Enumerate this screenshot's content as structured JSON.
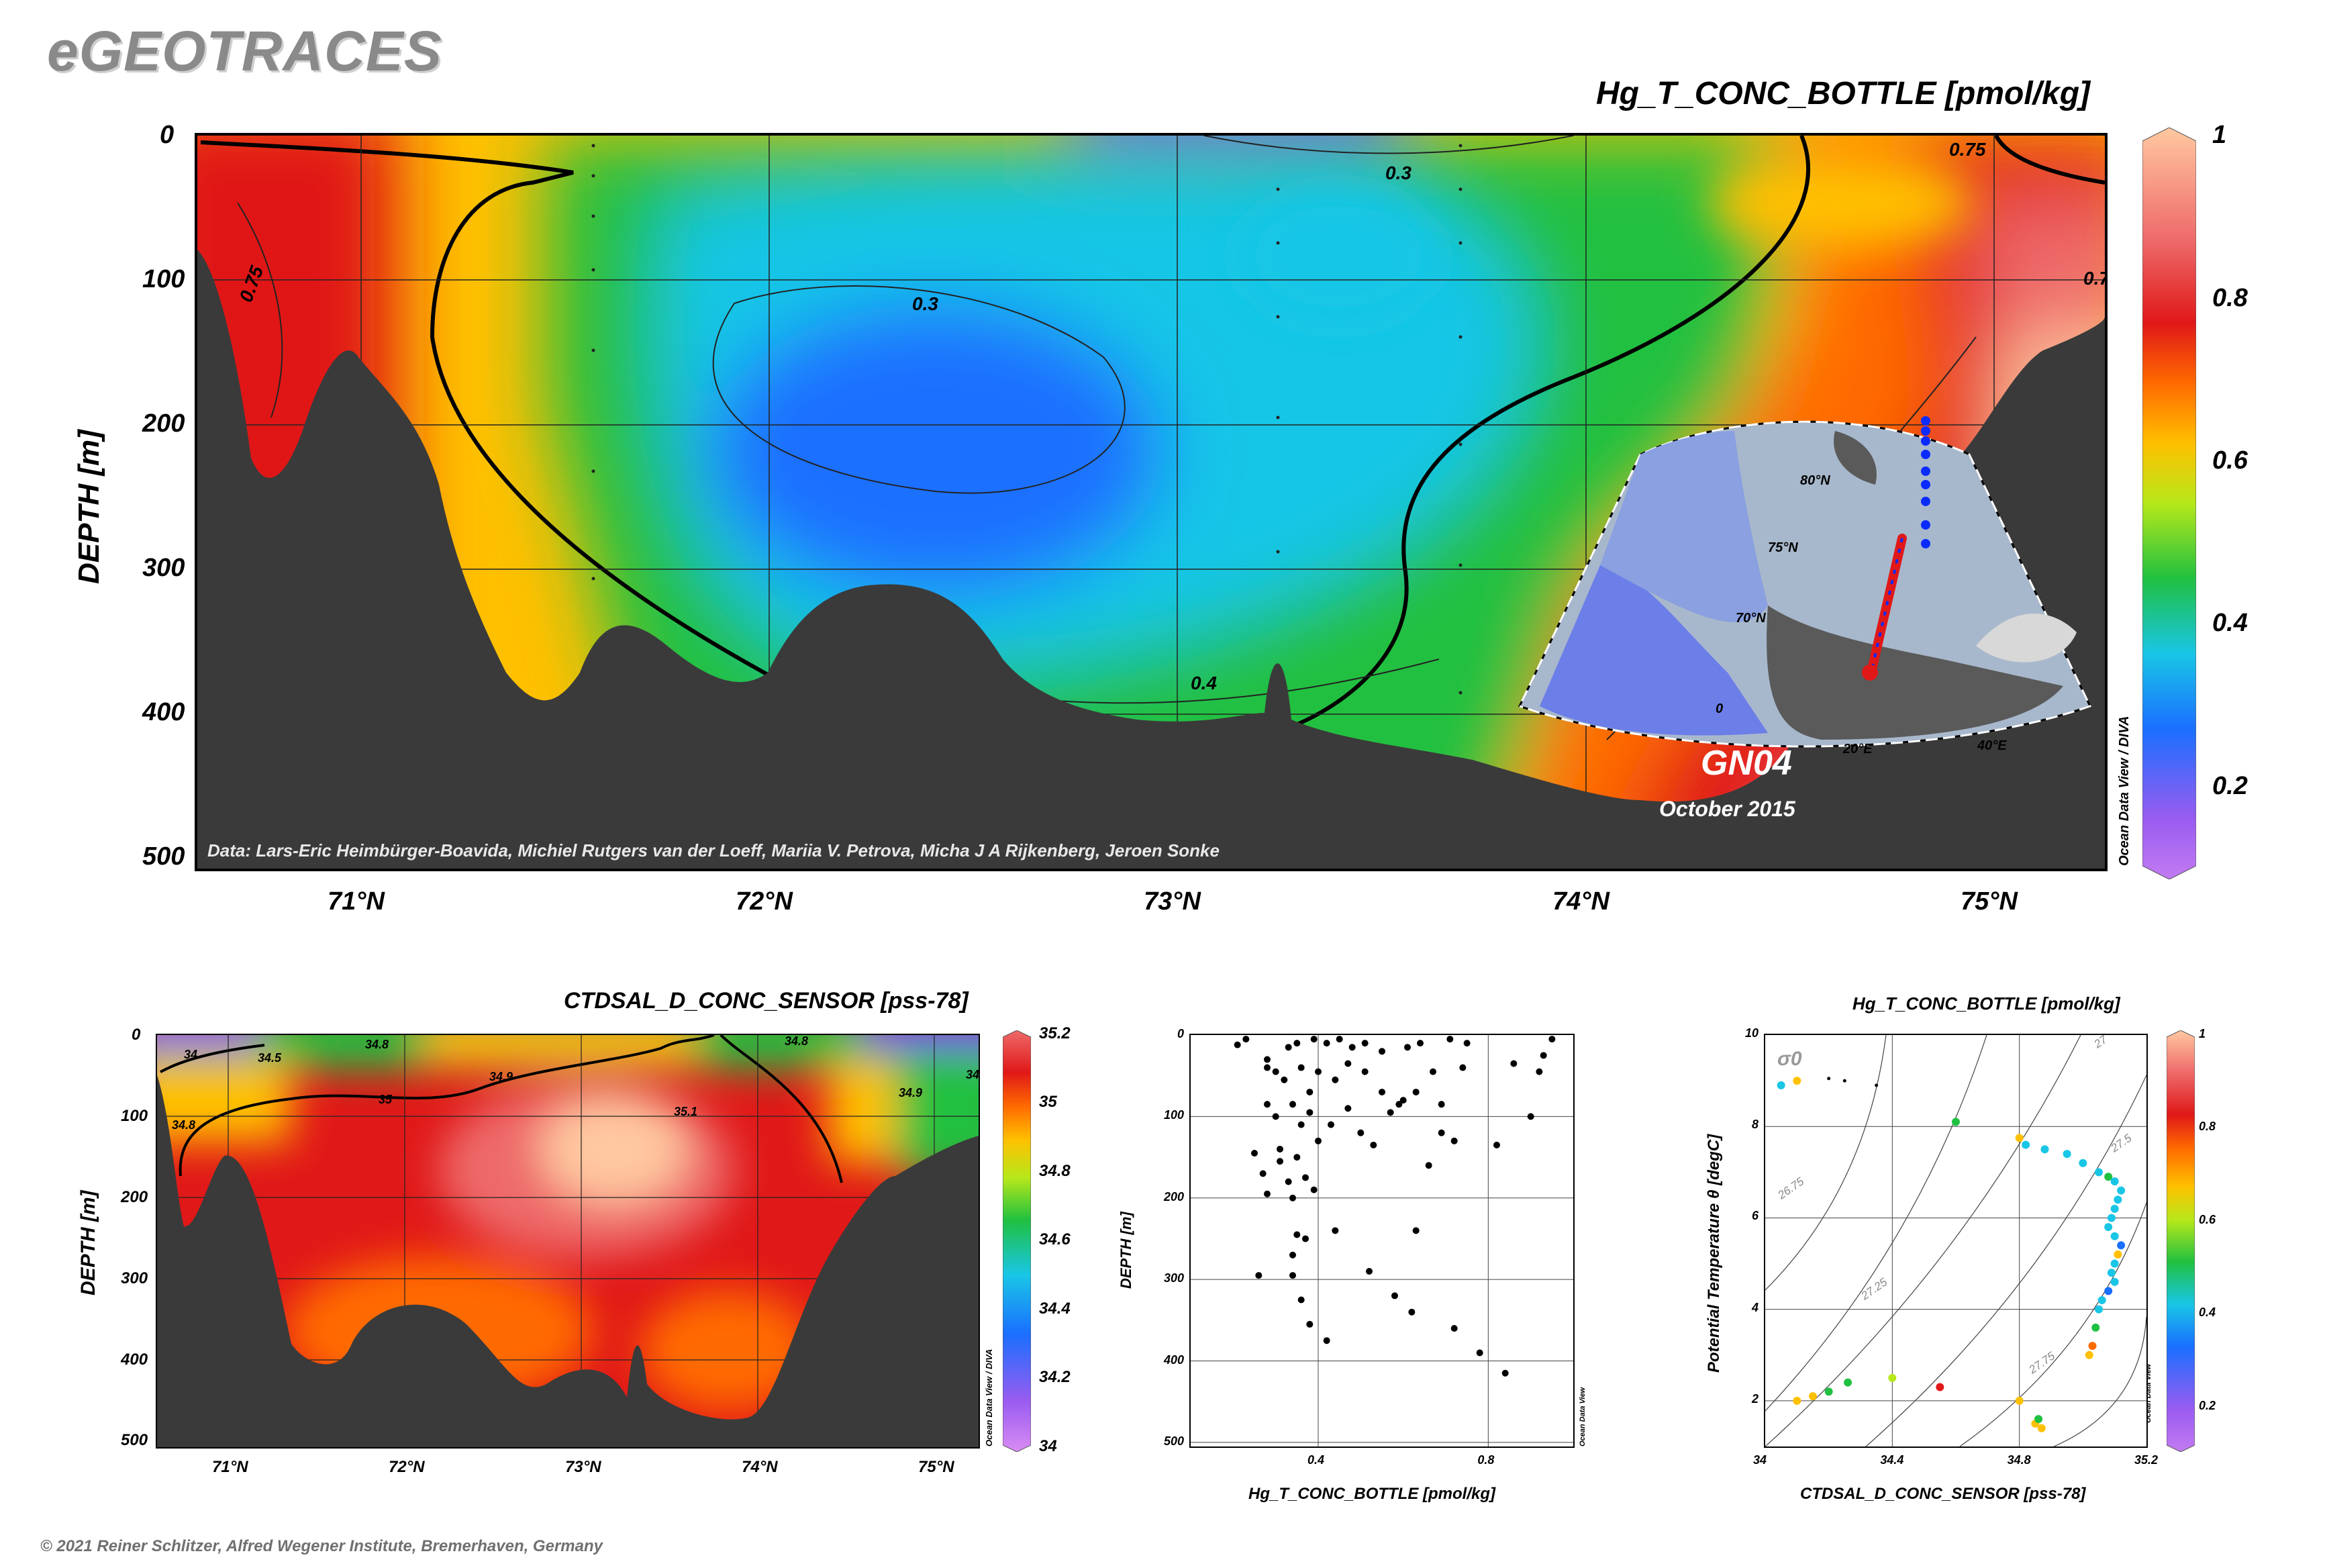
{
  "header": {
    "brand": "eGEOTRACES",
    "footer": "© 2021 Reiner Schlitzer, Alfred Wegener Institute, Bremerhaven, Germany"
  },
  "colors": {
    "bathymetry": "#3a3a3a",
    "scale": [
      "#c27bf2",
      "#7a3cf0",
      "#1a6fff",
      "#19c6e6",
      "#20c040",
      "#b6e81a",
      "#ffc000",
      "#ff6a00",
      "#e01818",
      "#ee6a6a",
      "#ffc8a0"
    ]
  },
  "main_section": {
    "title": "Hg_T_CONC_BOTTLE [pmol/kg]",
    "ylabel": "DEPTH [m]",
    "yticks": [
      "0",
      "100",
      "200",
      "300",
      "400",
      "500"
    ],
    "xticks": [
      "71°N",
      "72°N",
      "73°N",
      "74°N",
      "75°N"
    ],
    "colorbar_ticks": [
      "1",
      "0.8",
      "0.6",
      "0.4",
      "0.2"
    ],
    "contour_labels": [
      "0.75",
      "0.3",
      "0.3",
      "0.4",
      "0.75",
      "0.7"
    ],
    "credit": "Data: Lars-Eric Heimbürger-Boavida, Michiel Rutgers van der Loeff, Mariia V. Petrova, Micha J A Rijkenberg, Jeroen Sonke",
    "cruise": "GN04",
    "date": "October 2015",
    "odv_label": "Ocean Data View / DIVA",
    "map_labels": [
      "80°N",
      "75°N",
      "70°N",
      "0",
      "20°E",
      "40°E"
    ]
  },
  "salinity_section": {
    "title": "CTDSAL_D_CONC_SENSOR [pss-78]",
    "ylabel": "DEPTH [m]",
    "yticks": [
      "0",
      "100",
      "200",
      "300",
      "400",
      "500"
    ],
    "xticks": [
      "71°N",
      "72°N",
      "73°N",
      "74°N",
      "75°N"
    ],
    "colorbar_ticks": [
      "35.2",
      "35",
      "34.8",
      "34.6",
      "34.4",
      "34.2",
      "34"
    ],
    "contour_labels": [
      "34",
      "34.5",
      "34.8",
      "34.9",
      "35",
      "35.1",
      "34.8",
      "34.9",
      "34.8",
      "34"
    ],
    "odv_label": "Ocean Data View / DIVA"
  },
  "chart_data": [
    {
      "type": "heatmap",
      "title": "Hg_T_CONC_BOTTLE [pmol/kg]",
      "ylabel": "DEPTH [m]",
      "xlim": [
        70.6,
        75.3
      ],
      "ylim": [
        500,
        0
      ],
      "colorbar_range": [
        0.1,
        1
      ],
      "contour_levels": [
        0.3,
        0.4,
        0.5,
        0.7,
        0.75
      ],
      "grid": true
    },
    {
      "type": "scatter",
      "xlabel": "Hg_T_CONC_BOTTLE [pmol/kg]",
      "ylabel": "DEPTH [m]",
      "xlim": [
        0.1,
        1.0
      ],
      "ylim": [
        505,
        0
      ],
      "xticks": [
        "0.4",
        "0.8"
      ],
      "yticks": [
        "0",
        "100",
        "200",
        "300",
        "400",
        "500"
      ],
      "odv_label": "Ocean Data View",
      "points": [
        [
          0.21,
          12
        ],
        [
          0.23,
          5
        ],
        [
          0.28,
          30
        ],
        [
          0.28,
          40
        ],
        [
          0.33,
          15
        ],
        [
          0.35,
          10
        ],
        [
          0.39,
          5
        ],
        [
          0.42,
          10
        ],
        [
          0.45,
          5
        ],
        [
          0.48,
          15
        ],
        [
          0.51,
          10
        ],
        [
          0.55,
          20
        ],
        [
          0.61,
          15
        ],
        [
          0.64,
          10
        ],
        [
          0.71,
          5
        ],
        [
          0.75,
          10
        ],
        [
          0.92,
          45
        ],
        [
          0.93,
          25
        ],
        [
          0.95,
          5
        ],
        [
          0.3,
          45
        ],
        [
          0.32,
          55
        ],
        [
          0.36,
          40
        ],
        [
          0.38,
          70
        ],
        [
          0.4,
          45
        ],
        [
          0.44,
          55
        ],
        [
          0.47,
          35
        ],
        [
          0.51,
          45
        ],
        [
          0.55,
          70
        ],
        [
          0.59,
          85
        ],
        [
          0.63,
          70
        ],
        [
          0.67,
          45
        ],
        [
          0.69,
          85
        ],
        [
          0.74,
          40
        ],
        [
          0.86,
          35
        ],
        [
          0.9,
          100
        ],
        [
          0.28,
          85
        ],
        [
          0.3,
          100
        ],
        [
          0.34,
          85
        ],
        [
          0.36,
          110
        ],
        [
          0.38,
          95
        ],
        [
          0.4,
          130
        ],
        [
          0.43,
          110
        ],
        [
          0.47,
          90
        ],
        [
          0.5,
          120
        ],
        [
          0.53,
          135
        ],
        [
          0.57,
          95
        ],
        [
          0.6,
          80
        ],
        [
          0.66,
          160
        ],
        [
          0.69,
          120
        ],
        [
          0.72,
          130
        ],
        [
          0.82,
          135
        ],
        [
          0.25,
          145
        ],
        [
          0.27,
          170
        ],
        [
          0.31,
          155
        ],
        [
          0.33,
          180
        ],
        [
          0.35,
          150
        ],
        [
          0.37,
          175
        ],
        [
          0.39,
          190
        ],
        [
          0.28,
          195
        ],
        [
          0.34,
          200
        ],
        [
          0.31,
          140
        ],
        [
          0.35,
          245
        ],
        [
          0.34,
          270
        ],
        [
          0.37,
          250
        ],
        [
          0.44,
          240
        ],
        [
          0.63,
          240
        ],
        [
          0.26,
          295
        ],
        [
          0.34,
          295
        ],
        [
          0.36,
          325
        ],
        [
          0.38,
          355
        ],
        [
          0.42,
          375
        ],
        [
          0.52,
          290
        ],
        [
          0.58,
          320
        ],
        [
          0.62,
          340
        ],
        [
          0.72,
          360
        ],
        [
          0.78,
          390
        ],
        [
          0.84,
          415
        ]
      ]
    },
    {
      "type": "scatter",
      "title": "Hg_T_CONC_BOTTLE [pmol/kg]",
      "xlabel": "CTDSAL_D_CONC_SENSOR [pss-78]",
      "ylabel": "Potential Temperature θ [degC]",
      "xlim": [
        34,
        35.2
      ],
      "ylim": [
        1,
        10
      ],
      "xticks": [
        "34",
        "34.4",
        "34.8",
        "35.2"
      ],
      "yticks": [
        "2",
        "4",
        "6",
        "8",
        "10"
      ],
      "colorbar_ticks": [
        "1",
        "0.8",
        "0.6",
        "0.4",
        "0.2"
      ],
      "sigma_label": "σ0",
      "isopycnal_labels": [
        "27",
        "26.75",
        "27.25",
        "27.5",
        "27.75"
      ],
      "odv_label": "Ocean Data View",
      "points": [
        [
          34.05,
          8.9,
          0.4
        ],
        [
          34.1,
          9.0,
          0.7
        ],
        [
          34.2,
          9.05,
          0.0
        ],
        [
          34.25,
          9.0,
          0.0
        ],
        [
          34.35,
          8.9,
          0.0
        ],
        [
          34.6,
          8.1,
          0.5
        ],
        [
          34.8,
          7.75,
          0.7
        ],
        [
          34.82,
          7.6,
          0.35
        ],
        [
          34.88,
          7.5,
          0.4
        ],
        [
          34.95,
          7.4,
          0.35
        ],
        [
          35.0,
          7.2,
          0.4
        ],
        [
          35.05,
          7.0,
          0.35
        ],
        [
          35.08,
          6.9,
          0.5
        ],
        [
          35.1,
          6.8,
          0.4
        ],
        [
          35.12,
          6.6,
          0.35
        ],
        [
          35.11,
          6.4,
          0.35
        ],
        [
          35.1,
          6.2,
          0.4
        ],
        [
          35.09,
          6.0,
          0.35
        ],
        [
          35.08,
          5.8,
          0.35
        ],
        [
          35.1,
          5.6,
          0.4
        ],
        [
          35.12,
          5.4,
          0.3
        ],
        [
          35.11,
          5.2,
          0.7
        ],
        [
          35.1,
          5.0,
          0.4
        ],
        [
          35.09,
          4.8,
          0.35
        ],
        [
          35.1,
          4.6,
          0.35
        ],
        [
          35.08,
          4.4,
          0.3
        ],
        [
          35.06,
          4.2,
          0.35
        ],
        [
          35.05,
          4.0,
          0.35
        ],
        [
          35.04,
          3.6,
          0.45
        ],
        [
          35.03,
          3.2,
          0.75
        ],
        [
          35.02,
          3.0,
          0.65
        ],
        [
          34.1,
          2.0,
          0.7
        ],
        [
          34.15,
          2.1,
          0.65
        ],
        [
          34.2,
          2.2,
          0.5
        ],
        [
          34.26,
          2.4,
          0.45
        ],
        [
          34.4,
          2.5,
          0.6
        ],
        [
          34.55,
          2.3,
          0.85
        ],
        [
          34.8,
          2.0,
          0.65
        ],
        [
          34.85,
          1.5,
          0.65
        ],
        [
          34.87,
          1.4,
          0.7
        ],
        [
          34.86,
          1.6,
          0.5
        ]
      ]
    }
  ]
}
